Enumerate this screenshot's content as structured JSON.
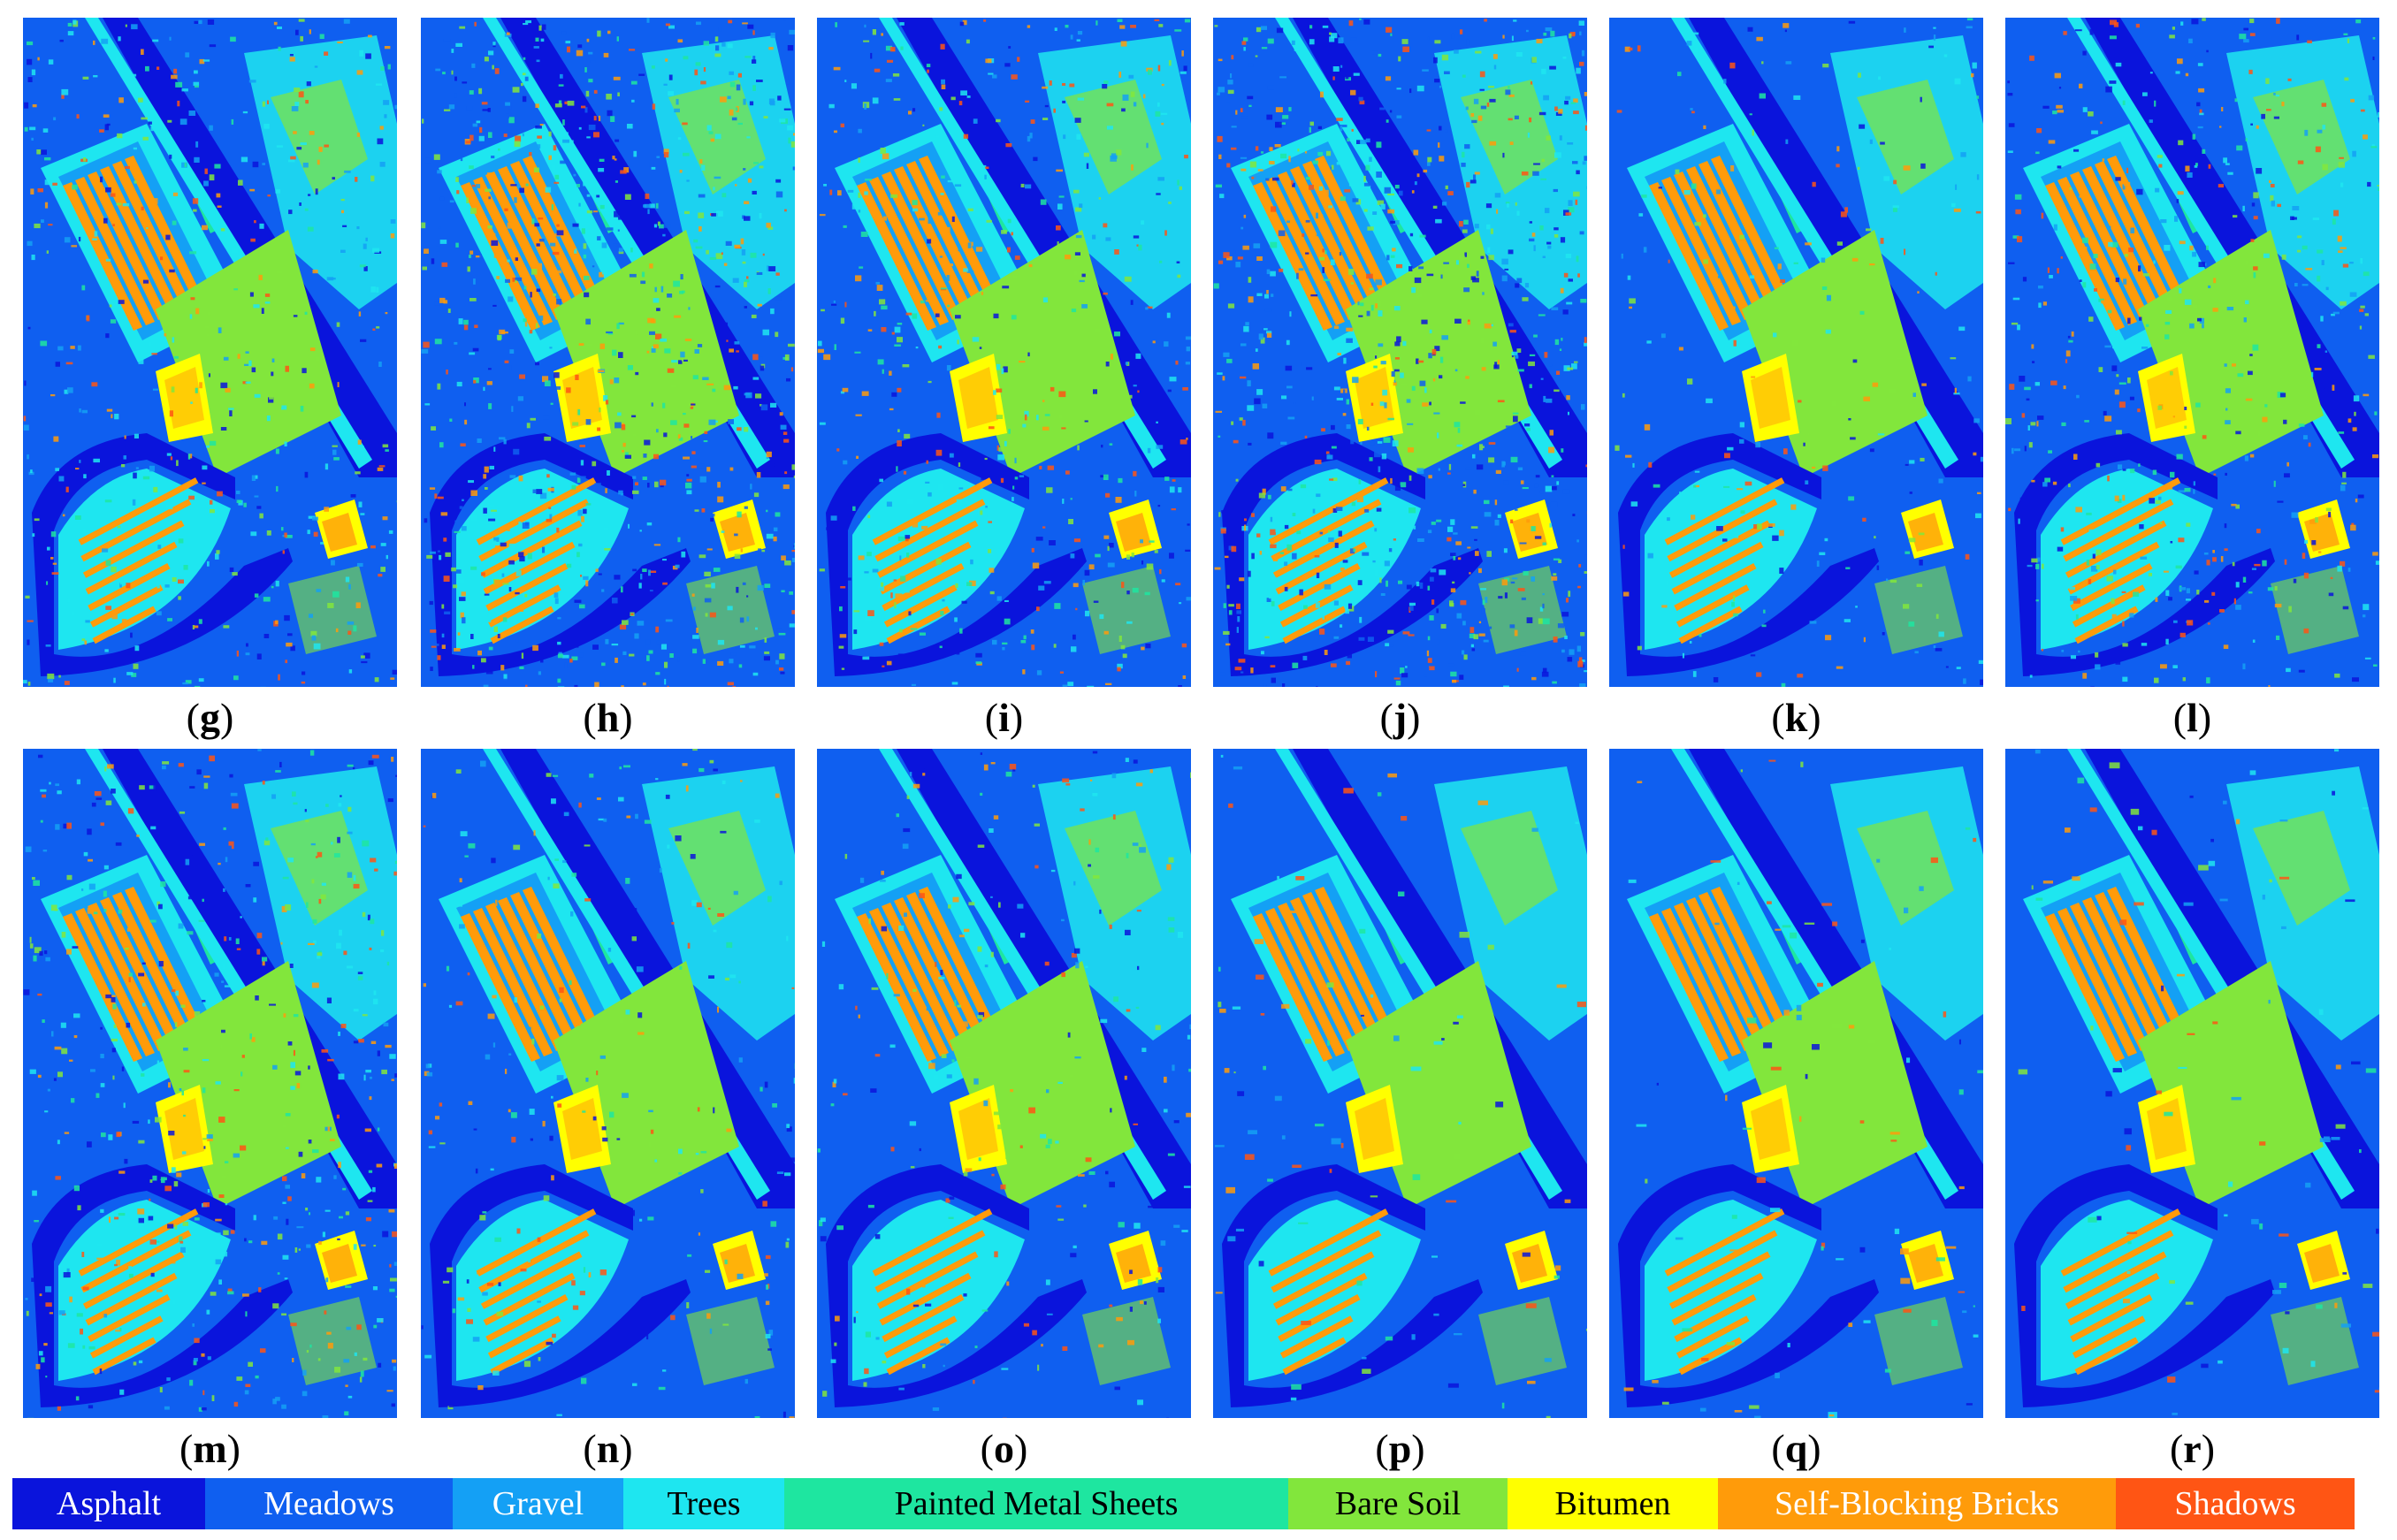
{
  "panels": [
    {
      "label": "g",
      "variant": "noisy"
    },
    {
      "label": "h",
      "variant": "very-noisy"
    },
    {
      "label": "i",
      "variant": "noisy"
    },
    {
      "label": "j",
      "variant": "very-noisy"
    },
    {
      "label": "k",
      "variant": "clean"
    },
    {
      "label": "l",
      "variant": "noisy"
    },
    {
      "label": "m",
      "variant": "noisy"
    },
    {
      "label": "n",
      "variant": "clean"
    },
    {
      "label": "o",
      "variant": "clean"
    },
    {
      "label": "p",
      "variant": "smooth"
    },
    {
      "label": "q",
      "variant": "smooth"
    },
    {
      "label": "r",
      "variant": "smooth"
    }
  ],
  "legend": [
    {
      "label": "Asphalt",
      "color": "#0a14dc",
      "text_color": "#ffffff"
    },
    {
      "label": "Meadows",
      "color": "#0f5ff0",
      "text_color": "#ffffff"
    },
    {
      "label": "Gravel",
      "color": "#14a0f5",
      "text_color": "#ffffff"
    },
    {
      "label": "Trees",
      "color": "#1ee6f0",
      "text_color": "#000000"
    },
    {
      "label": "Painted Metal Sheets",
      "color": "#1ee6a0",
      "text_color": "#000000"
    },
    {
      "label": "Bare Soil",
      "color": "#82e63c",
      "text_color": "#000000"
    },
    {
      "label": "Bitumen",
      "color": "#ffff00",
      "text_color": "#000000"
    },
    {
      "label": "Self-Blocking Bricks",
      "color": "#ff9b0a",
      "text_color": "#ffffff"
    },
    {
      "label": "Shadows",
      "color": "#ff5514",
      "text_color": "#ffffff"
    }
  ]
}
